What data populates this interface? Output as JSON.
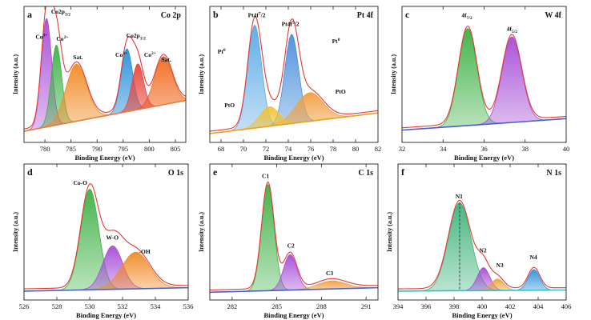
{
  "chart_data": [
    {
      "type": "area",
      "letter": "a",
      "title": "Co 2p",
      "xlabel": "Binding Energy (eV)",
      "ylabel": "Intensity (a.u.)",
      "xlim": [
        776,
        807
      ],
      "xticks": [
        780,
        785,
        790,
        795,
        800,
        805
      ],
      "ylim": [
        0,
        1
      ],
      "colors": {
        "envelope": "#e53935",
        "baseline": "#f07a3a"
      },
      "baseline": {
        "x": [
          776,
          807
        ],
        "y": [
          0.05,
          0.32
        ]
      },
      "series": [
        {
          "center": 780.3,
          "width": 1.0,
          "height": 0.95,
          "color": "#a64cd6"
        },
        {
          "center": 782.2,
          "width": 1.0,
          "height": 0.7,
          "color": "#3cb043"
        },
        {
          "center": 786.0,
          "width": 2.0,
          "height": 0.5,
          "color": "#f08a24"
        },
        {
          "center": 795.7,
          "width": 1.1,
          "height": 0.55,
          "color": "#2b8fd9"
        },
        {
          "center": 797.8,
          "width": 1.1,
          "height": 0.4,
          "color": "#e8453c"
        },
        {
          "center": 802.7,
          "width": 1.7,
          "height": 0.42,
          "color": "#f06a1e"
        }
      ],
      "annotations": [
        {
          "text": "Co",
          "sup": "3+",
          "x": 778.2,
          "y": 0.86
        },
        {
          "text": "Co2p",
          "sub": "3/2",
          "x": 781.2,
          "y": 1.08
        },
        {
          "text": "Co",
          "sup": "2+",
          "x": 782.2,
          "y": 0.84
        },
        {
          "text": "Sat.",
          "x": 785.4,
          "y": 0.68
        },
        {
          "text": "Co2p",
          "sub": "1/2",
          "x": 795.6,
          "y": 0.87
        },
        {
          "text": "Co",
          "sup": "3+",
          "x": 793.5,
          "y": 0.7
        },
        {
          "text": "Co",
          "sup": "2+",
          "x": 799.0,
          "y": 0.7
        },
        {
          "text": "Sat.",
          "x": 802.3,
          "y": 0.66
        }
      ]
    },
    {
      "type": "area",
      "letter": "b",
      "title": "Pt 4f",
      "xlabel": "Binding Energy (eV)",
      "ylabel": "Intensity (a.u.)",
      "xlim": [
        67,
        82
      ],
      "xticks": [
        68,
        70,
        72,
        74,
        76,
        78,
        80,
        82
      ],
      "ylim": [
        0,
        1
      ],
      "colors": {
        "envelope": "#e53935",
        "baseline": "#f0a020"
      },
      "baseline": {
        "x": [
          67,
          82
        ],
        "y": [
          0.03,
          0.21
        ]
      },
      "series": [
        {
          "center": 71.0,
          "width": 0.62,
          "height": 0.9,
          "color": "#5aa9e6"
        },
        {
          "center": 72.3,
          "width": 0.85,
          "height": 0.17,
          "color": "#f2c12e"
        },
        {
          "center": 74.3,
          "width": 0.62,
          "height": 0.78,
          "color": "#4a8fd9"
        },
        {
          "center": 75.9,
          "width": 1.2,
          "height": 0.25,
          "color": "#f0a040"
        }
      ],
      "annotations": [
        {
          "text": "Pt4f",
          "sup": "7",
          "tail": "/2",
          "x": 70.4,
          "y": 1.05
        },
        {
          "text": "Pt4f",
          "sup": "5",
          "tail": "/2",
          "x": 73.4,
          "y": 0.97
        },
        {
          "text": "Pt",
          "sup": "0",
          "x": 67.7,
          "y": 0.73
        },
        {
          "text": "Pt",
          "sup": "0",
          "x": 77.9,
          "y": 0.82
        },
        {
          "text": "PtO",
          "x": 68.3,
          "y": 0.26
        },
        {
          "text": "PtO",
          "x": 78.2,
          "y": 0.38
        }
      ]
    },
    {
      "type": "area",
      "letter": "c",
      "title": "W 4f",
      "xlabel": "Binding Energy (eV)",
      "ylabel": "Intensity (a.u.)",
      "xlim": [
        32,
        40
      ],
      "xticks": [
        32,
        34,
        36,
        38,
        40
      ],
      "ylim": [
        0,
        1
      ],
      "colors": {
        "envelope": "#e53935",
        "baseline": "#4a5fd0"
      },
      "baseline": {
        "x": [
          32,
          40
        ],
        "y": [
          0.06,
          0.16
        ]
      },
      "series": [
        {
          "center": 35.2,
          "width": 0.45,
          "height": 0.85,
          "color": "#3cb043"
        },
        {
          "center": 37.35,
          "width": 0.48,
          "height": 0.75,
          "color": "#a64cd6"
        }
      ],
      "annotations": [
        {
          "text": "4f",
          "sub": "7/2",
          "x": 34.9,
          "y": 1.05
        },
        {
          "text": "4f",
          "sub": "5/2",
          "x": 37.1,
          "y": 0.93
        }
      ]
    },
    {
      "type": "area",
      "letter": "d",
      "title": "O 1s",
      "xlabel": "Binding Energy (eV)",
      "ylabel": "Intensity (a.u.)",
      "xlim": [
        526,
        536
      ],
      "xticks": [
        526,
        528,
        530,
        532,
        534,
        536
      ],
      "ylim": [
        0,
        1
      ],
      "colors": {
        "envelope": "#e53935",
        "baseline": "#4a5fd0"
      },
      "baseline": {
        "x": [
          526,
          536
        ],
        "y": [
          0.03,
          0.06
        ]
      },
      "series": [
        {
          "center": 530.0,
          "width": 0.55,
          "height": 0.88,
          "color": "#3cb043"
        },
        {
          "center": 531.4,
          "width": 0.6,
          "height": 0.38,
          "color": "#a64cd6"
        },
        {
          "center": 532.8,
          "width": 0.85,
          "height": 0.32,
          "color": "#f08a24"
        }
      ],
      "annotations": [
        {
          "text": "Co-O",
          "x": 529.0,
          "y": 0.96
        },
        {
          "text": "W-O",
          "x": 531.0,
          "y": 0.48
        },
        {
          "text": "-OH",
          "x": 533.0,
          "y": 0.36
        }
      ]
    },
    {
      "type": "area",
      "letter": "e",
      "title": "C 1s",
      "xlabel": "Binding Energy (eV)",
      "ylabel": "Intensity (a.u.)",
      "xlim": [
        280.5,
        291.8
      ],
      "xticks": [
        282,
        285,
        288,
        291
      ],
      "ylim": [
        0,
        1
      ],
      "colors": {
        "envelope": "#e53935",
        "baseline": "#4a5fd0"
      },
      "baseline": {
        "x": [
          280.5,
          291.8
        ],
        "y": [
          0.02,
          0.06
        ]
      },
      "series": [
        {
          "center": 284.4,
          "width": 0.42,
          "height": 0.93,
          "color": "#3cb043"
        },
        {
          "center": 285.9,
          "width": 0.45,
          "height": 0.31,
          "color": "#a64cd6"
        },
        {
          "center": 288.7,
          "width": 0.95,
          "height": 0.07,
          "color": "#f0a040"
        }
      ],
      "annotations": [
        {
          "text": "C1",
          "x": 284.0,
          "y": 1.02
        },
        {
          "text": "C2",
          "x": 285.7,
          "y": 0.41
        },
        {
          "text": "C3",
          "x": 288.3,
          "y": 0.17
        }
      ]
    },
    {
      "type": "area",
      "letter": "f",
      "title": "N 1s",
      "xlabel": "Binding Energy (eV)",
      "ylabel": "Intensity (a.u.)",
      "xlim": [
        394,
        406
      ],
      "xticks": [
        394,
        396,
        398,
        400,
        402,
        404,
        406
      ],
      "ylim": [
        0,
        1
      ],
      "colors": {
        "envelope": "#e53935",
        "baseline": "#27c4c8"
      },
      "baseline": {
        "x": [
          394,
          406
        ],
        "y": [
          0.03,
          0.04
        ]
      },
      "series": [
        {
          "center": 398.4,
          "width": 0.8,
          "height": 0.77,
          "color": "#3cb37a"
        },
        {
          "center": 400.1,
          "width": 0.45,
          "height": 0.2,
          "color": "#a64cd6"
        },
        {
          "center": 401.1,
          "width": 0.45,
          "height": 0.1,
          "color": "#f0a030"
        },
        {
          "center": 403.7,
          "width": 0.42,
          "height": 0.18,
          "color": "#2b8fd9"
        }
      ],
      "annotations": [
        {
          "text": "N1",
          "x": 398.1,
          "y": 0.84
        },
        {
          "text": "N2",
          "x": 399.8,
          "y": 0.37
        },
        {
          "text": "N3",
          "x": 401.0,
          "y": 0.24
        },
        {
          "text": "N4",
          "x": 403.4,
          "y": 0.31
        }
      ]
    }
  ]
}
